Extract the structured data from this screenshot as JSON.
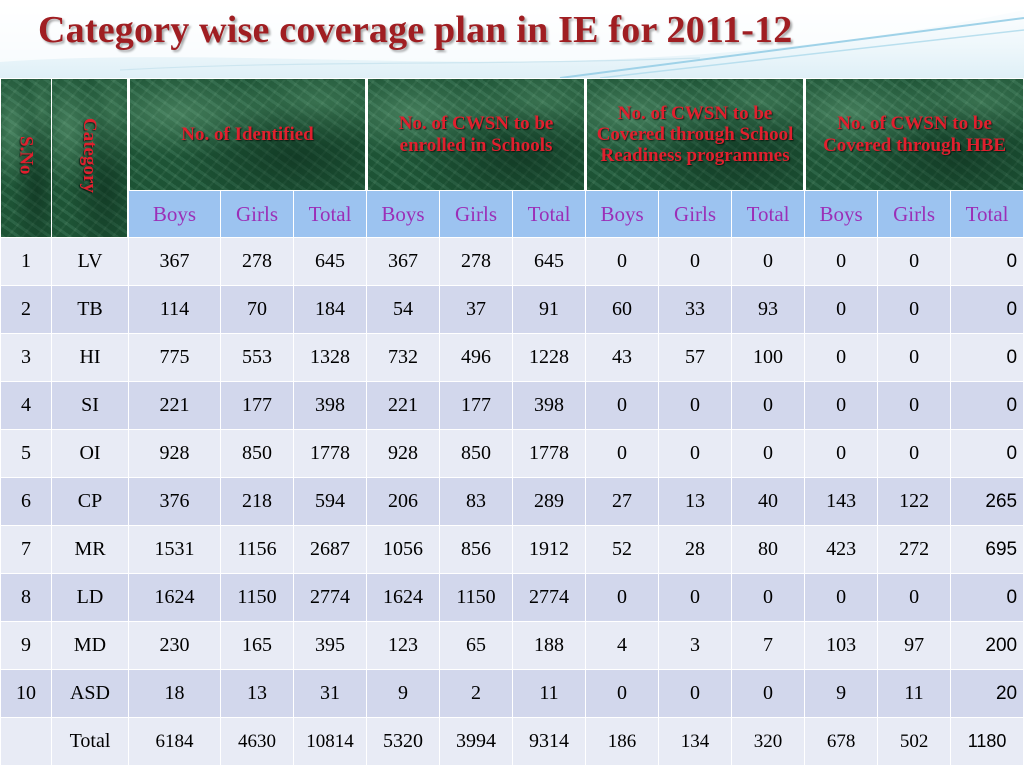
{
  "title": "Category wise coverage plan in IE for 2011-12",
  "headers": {
    "sno": "S.No",
    "category": "Category",
    "groups": [
      "No. of Identified",
      "No. of CWSN to be enrolled in Schools",
      "No. of CWSN to be Covered through School Readiness programmes",
      "No. of CWSN to be Covered through HBE"
    ],
    "sub": [
      "Boys",
      "Girls",
      "Total"
    ]
  },
  "rows": [
    {
      "sno": "1",
      "cat": "LV",
      "v": [
        "367",
        "278",
        "645",
        "367",
        "278",
        "645",
        "0",
        "0",
        "0",
        "0",
        "0",
        "0"
      ]
    },
    {
      "sno": "2",
      "cat": "TB",
      "v": [
        "114",
        "70",
        "184",
        "54",
        "37",
        "91",
        "60",
        "33",
        "93",
        "0",
        "0",
        "0"
      ]
    },
    {
      "sno": "3",
      "cat": "HI",
      "v": [
        "775",
        "553",
        "1328",
        "732",
        "496",
        "1228",
        "43",
        "57",
        "100",
        "0",
        "0",
        "0"
      ]
    },
    {
      "sno": "4",
      "cat": "SI",
      "v": [
        "221",
        "177",
        "398",
        "221",
        "177",
        "398",
        "0",
        "0",
        "0",
        "0",
        "0",
        "0"
      ]
    },
    {
      "sno": "5",
      "cat": "OI",
      "v": [
        "928",
        "850",
        "1778",
        "928",
        "850",
        "1778",
        "0",
        "0",
        "0",
        "0",
        "0",
        "0"
      ]
    },
    {
      "sno": "6",
      "cat": "CP",
      "v": [
        "376",
        "218",
        "594",
        "206",
        "83",
        "289",
        "27",
        "13",
        "40",
        "143",
        "122",
        "265"
      ]
    },
    {
      "sno": "7",
      "cat": "MR",
      "v": [
        "1531",
        "1156",
        "2687",
        "1056",
        "856",
        "1912",
        "52",
        "28",
        "80",
        "423",
        "272",
        "695"
      ]
    },
    {
      "sno": "8",
      "cat": "LD",
      "v": [
        "1624",
        "1150",
        "2774",
        "1624",
        "1150",
        "2774",
        "0",
        "0",
        "0",
        "0",
        "0",
        "0"
      ]
    },
    {
      "sno": "9",
      "cat": "MD",
      "v": [
        "230",
        "165",
        "395",
        "123",
        "65",
        "188",
        "4",
        "3",
        "7",
        "103",
        "97",
        "200"
      ]
    },
    {
      "sno": "10",
      "cat": "ASD",
      "v": [
        "18",
        "13",
        "31",
        "9",
        "2",
        "11",
        "0",
        "0",
        "0",
        "9",
        "11",
        "20"
      ]
    }
  ],
  "total": {
    "label": "Total",
    "v": [
      "6184",
      "4630",
      "10814",
      "5320",
      "3994",
      "9314",
      "186",
      "134",
      "320",
      "678",
      "502",
      "1180"
    ]
  },
  "colors": {
    "title": "#a01e22",
    "header_text": "#e0202e",
    "header_bg": "#1f5a3a",
    "subheader_bg": "#9cc3f0",
    "subheader_text": "#9b2fb7",
    "row_light": "#e8ebf5",
    "row_dark": "#d2d7ec"
  }
}
